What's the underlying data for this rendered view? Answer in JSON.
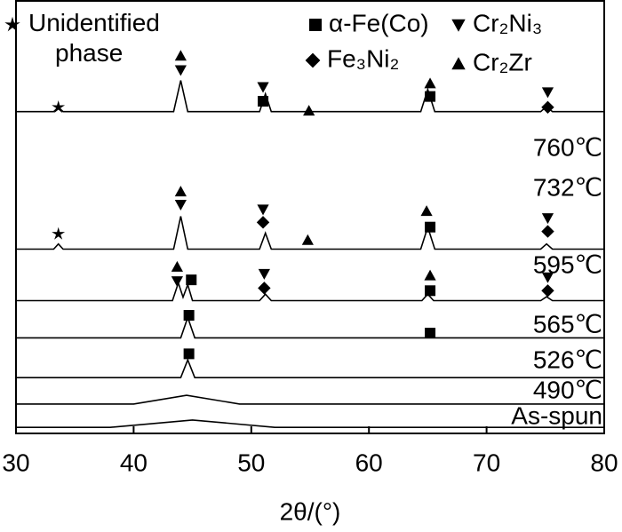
{
  "chart_data": {
    "type": "line",
    "xlabel": "2θ/(°)",
    "xlim": [
      30,
      80
    ],
    "xticks": [
      30,
      40,
      50,
      60,
      70,
      80
    ],
    "ylim": [
      0,
      100
    ],
    "series": [
      {
        "name": "760℃",
        "color": "#000000",
        "x": [
          30,
          33.2,
          33.6,
          34.0,
          43.4,
          44.0,
          44.6,
          50.7,
          51.2,
          51.7,
          64.4,
          65.0,
          65.6,
          74.6,
          75.1,
          75.6,
          80
        ],
        "values": [
          74.4,
          74.4,
          75.4,
          74.4,
          74.4,
          81.6,
          74.4,
          74.4,
          78.5,
          74.4,
          74.4,
          79.5,
          74.4,
          74.4,
          75.6,
          74.4,
          74.4
        ]
      },
      {
        "name": "732℃",
        "color": "#000000",
        "x": [
          30,
          33.2,
          33.6,
          34.0,
          43.4,
          44.0,
          44.6,
          50.7,
          51.2,
          51.7,
          64.4,
          65.0,
          65.6,
          74.6,
          75.1,
          75.6,
          80
        ],
        "values": [
          42.6,
          42.6,
          43.8,
          42.6,
          42.6,
          50.2,
          42.6,
          42.6,
          46.3,
          42.6,
          42.6,
          47.7,
          42.6,
          42.6,
          43.8,
          42.6,
          42.6
        ]
      },
      {
        "name": "595℃",
        "color": "#000000",
        "x": [
          30,
          43.3,
          43.8,
          44.2,
          44.6,
          45.0,
          50.7,
          51.2,
          51.7,
          64.5,
          65.0,
          65.5,
          74.6,
          75.1,
          75.6,
          80
        ],
        "values": [
          30.7,
          30.7,
          34.8,
          31.5,
          34.4,
          30.7,
          30.7,
          32.2,
          30.7,
          30.7,
          32.2,
          30.7,
          30.7,
          31.6,
          30.7,
          30.7
        ]
      },
      {
        "name": "565℃",
        "color": "#000000",
        "x": [
          30,
          44.0,
          44.6,
          45.2,
          80
        ],
        "values": [
          22.1,
          22.1,
          26.8,
          22.1,
          22.1
        ]
      },
      {
        "name": "526℃",
        "color": "#000000",
        "x": [
          30,
          44.0,
          44.6,
          45.2,
          80
        ],
        "values": [
          12.9,
          12.9,
          17.0,
          12.9,
          12.9
        ]
      },
      {
        "name": "490℃",
        "color": "#000000",
        "x": [
          30,
          40,
          44.5,
          49,
          80
        ],
        "values": [
          6.8,
          6.8,
          8.8,
          6.8,
          6.8
        ]
      },
      {
        "name": "As-spun",
        "color": "#000000",
        "x": [
          30,
          38,
          45,
          52,
          80
        ],
        "values": [
          1.4,
          1.4,
          3.1,
          1.4,
          1.4
        ]
      }
    ],
    "phases": [
      {
        "name": "Unidentified phase",
        "symbol": "star",
        "x": [
          33.6,
          33.6
        ],
        "values": [
          75.4,
          46.1
        ]
      },
      {
        "name": "α-Fe(Co)",
        "symbol": "square",
        "x": [
          51.0,
          65.2,
          65.2,
          44.9,
          65.2,
          44.7,
          65.2,
          44.7
        ],
        "values": [
          76.8,
          77.9,
          47.7,
          35.5,
          33.0,
          27.3,
          23.2,
          18.4
        ]
      },
      {
        "name": "Fe₃Ni₂",
        "symbol": "diamond",
        "x": [
          75.2,
          51.0,
          75.2,
          51.1,
          75.2
        ],
        "values": [
          75.4,
          48.8,
          46.7,
          33.6,
          33.0
        ]
      },
      {
        "name": "Cr₂Ni₃",
        "symbol": "triangle-down",
        "x": [
          44.0,
          51.0,
          75.2,
          44.0,
          51.0,
          75.2,
          43.7,
          51.1,
          75.2
        ],
        "values": [
          84.0,
          80.1,
          78.9,
          52.9,
          51.8,
          49.8,
          35.2,
          36.9,
          36.1
        ]
      },
      {
        "name": "Cr₂Zr",
        "symbol": "triangle-up",
        "x": [
          44.0,
          65.2,
          54.9,
          44.0,
          64.9,
          54.8,
          43.7,
          65.2
        ],
        "values": [
          87.3,
          80.9,
          74.6,
          55.9,
          51.4,
          44.7,
          38.5,
          36.5
        ]
      }
    ]
  }
}
